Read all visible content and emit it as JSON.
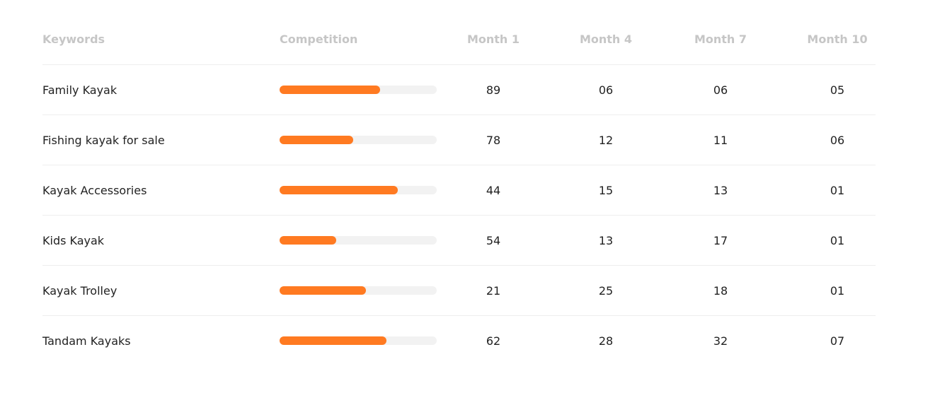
{
  "colors": {
    "accent": "#ff7a21",
    "track": "#f2f2f2",
    "header_text": "#c6c6c6",
    "body_text": "#222222"
  },
  "table": {
    "headers": {
      "keywords": "Keywords",
      "competition": "Competition",
      "month1": "Month 1",
      "month4": "Month 4",
      "month7": "Month 7",
      "month10": "Month 10"
    },
    "rows": [
      {
        "keyword": "Family Kayak",
        "competition": 0.64,
        "month1": "89",
        "month4": "06",
        "month7": "06",
        "month10": "05"
      },
      {
        "keyword": "Fishing kayak for sale",
        "competition": 0.47,
        "month1": "78",
        "month4": "12",
        "month7": "11",
        "month10": "06"
      },
      {
        "keyword": "Kayak Accessories",
        "competition": 0.75,
        "month1": "44",
        "month4": "15",
        "month7": "13",
        "month10": "01"
      },
      {
        "keyword": "Kids Kayak",
        "competition": 0.36,
        "month1": "54",
        "month4": "13",
        "month7": "17",
        "month10": "01"
      },
      {
        "keyword": "Kayak Trolley",
        "competition": 0.55,
        "month1": "21",
        "month4": "25",
        "month7": "18",
        "month10": "01"
      },
      {
        "keyword": "Tandam Kayaks",
        "competition": 0.68,
        "month1": "62",
        "month4": "28",
        "month7": "32",
        "month10": "07"
      }
    ]
  }
}
